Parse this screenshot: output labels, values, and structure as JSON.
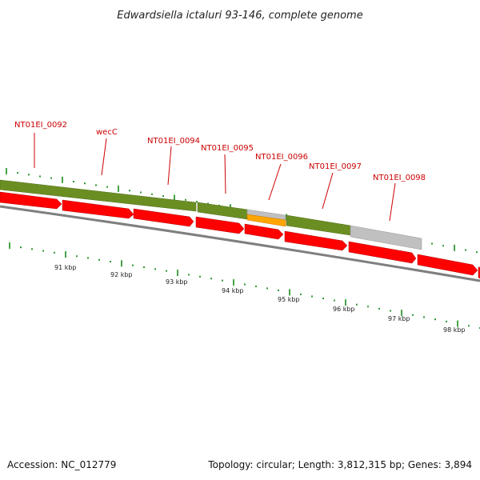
{
  "title": "Edwardsiella ictaluri 93-146, complete genome",
  "footer": {
    "accession": "Accession: NC_012779",
    "topology": "Topology: circular; Length: 3,812,315 bp; Genes: 3,894"
  },
  "colors": {
    "gene_label": "#cc0000",
    "cds_arrow": "#ff0000",
    "gene_bar": "#6b8e23",
    "pseudo_bar": "#c0c0c0",
    "orange_bar": "#ffa500",
    "backbone": "#808080",
    "tick": "#1a8a1a"
  },
  "gene_labels": [
    "NT01EI_0092",
    "wecC",
    "NT01EI_0094",
    "NT01EI_0095",
    "NT01EI_0096",
    "NT01EI_0097",
    "NT01EI_0098"
  ],
  "kbp_labels": [
    "91 kbp",
    "92 kbp",
    "93 kbp",
    "94 kbp",
    "95 kbp",
    "96 kbp",
    "97 kbp",
    "98 kbp"
  ]
}
